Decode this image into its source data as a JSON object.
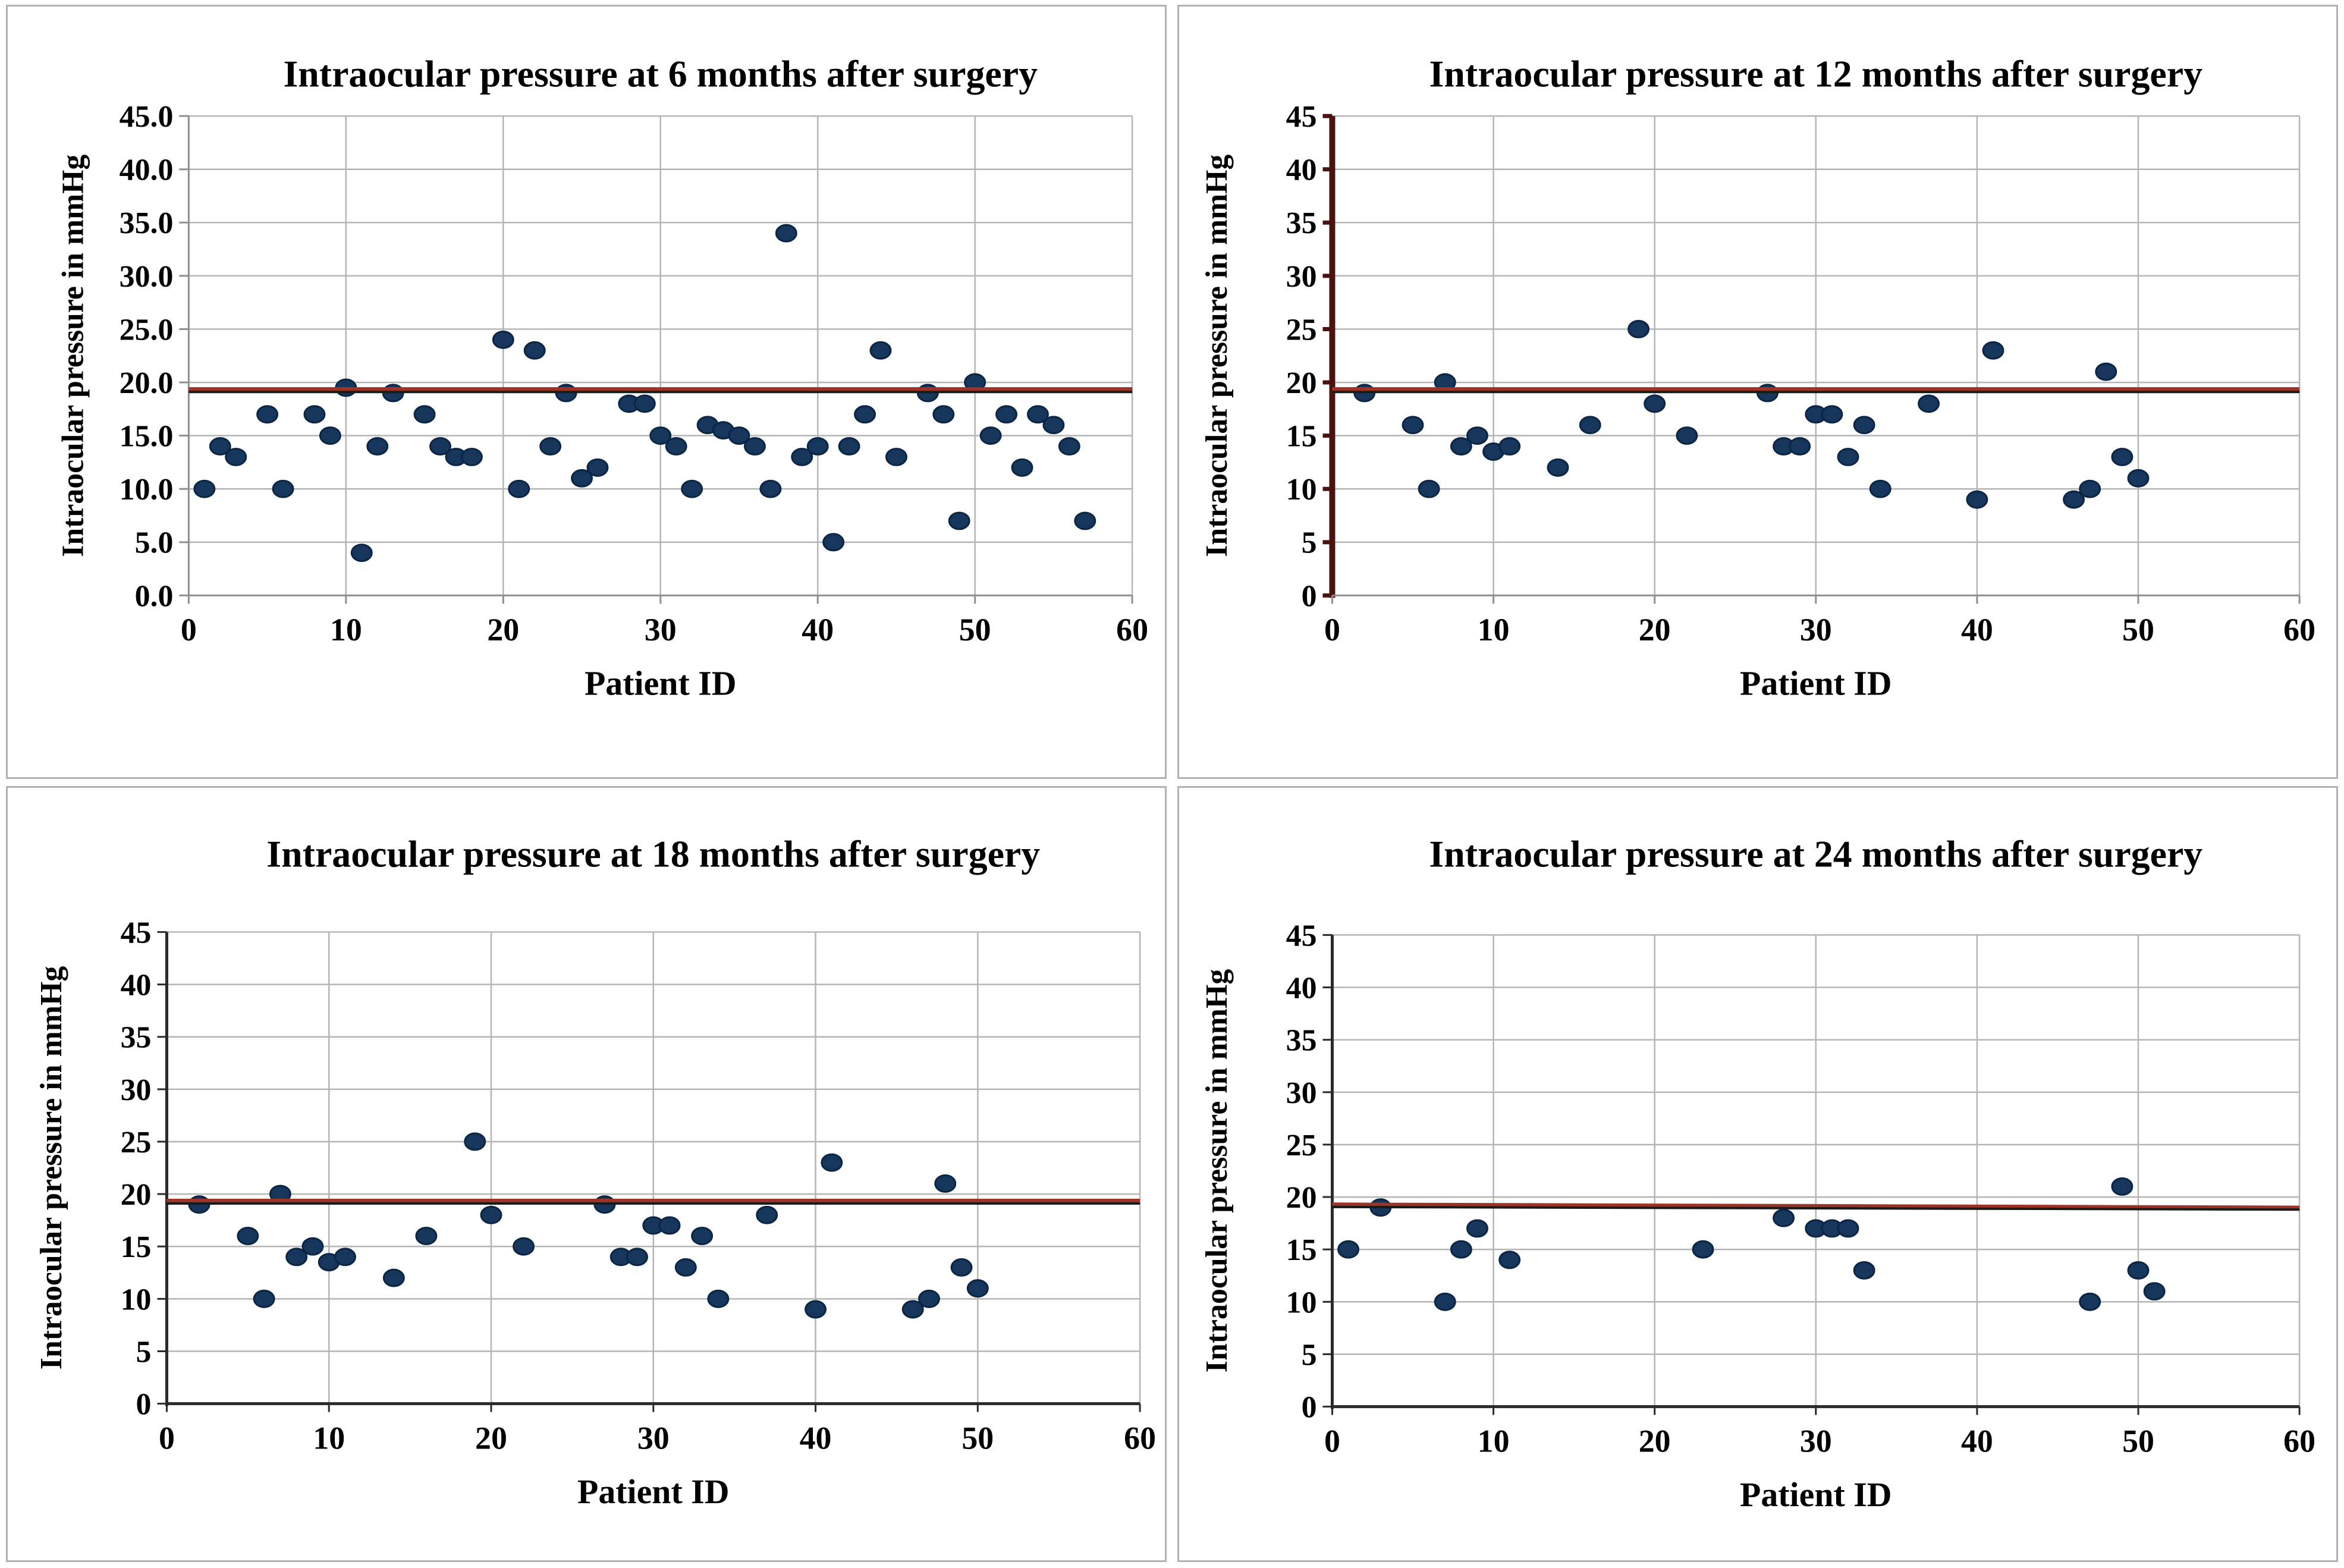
{
  "figure": {
    "description": "Four scatter plots of intraocular pressure per patient at 6, 12, 18 and 24 months after surgery, each with a dark-red/black horizontal reference line near 19 mmHg"
  },
  "colors": {
    "background": "#ffffff",
    "panel_border": "#b2b2b2",
    "grid": "#b5b5b5",
    "dot_fill": "#16365c",
    "dot_stroke": "#0b2544",
    "dark_red": "#9c3327",
    "black": "#1a1a1a",
    "maroon_axis": "#4a130f",
    "gray_axis": "#8f8f8f",
    "dark_axis": "#2a2a2a",
    "text": "#000000"
  },
  "chart_data": [
    {
      "type": "scatter",
      "title": "Intraocular pressure at 6 months after surgery",
      "xlabel": "Patient ID",
      "ylabel": "Intraocular pressure in mmHg",
      "xlim": [
        0,
        60
      ],
      "ylim": [
        0,
        45
      ],
      "xticks": [
        0,
        10,
        20,
        30,
        40,
        50,
        60
      ],
      "xtick_labels": [
        "0",
        "10",
        "20",
        "30",
        "40",
        "50",
        "60"
      ],
      "yticks": [
        0,
        5,
        10,
        15,
        20,
        25,
        30,
        35,
        40,
        45
      ],
      "ytick_labels": [
        "0.0",
        "5.0",
        "10.0",
        "15.0",
        "20.0",
        "25.0",
        "30.0",
        "35.0",
        "40.0",
        "45.0"
      ],
      "grid": true,
      "legend": "none",
      "y_axis_style": "gray",
      "x_axis_style": "gray",
      "reference_lines": [
        {
          "name": "reference-line-red",
          "color": "dark_red",
          "width": 9,
          "y_start": 19.3,
          "y_end": 19.3
        },
        {
          "name": "trend-line-black",
          "color": "black",
          "width": 4,
          "y_start": 19.1,
          "y_end": 19.1
        }
      ],
      "points": [
        [
          1,
          10
        ],
        [
          2,
          14
        ],
        [
          3,
          13
        ],
        [
          5,
          17
        ],
        [
          6,
          10
        ],
        [
          8,
          17
        ],
        [
          9,
          15
        ],
        [
          10,
          19.5
        ],
        [
          11,
          4
        ],
        [
          12,
          14
        ],
        [
          13,
          19
        ],
        [
          15,
          17
        ],
        [
          16,
          14
        ],
        [
          17,
          13
        ],
        [
          18,
          13
        ],
        [
          20,
          24
        ],
        [
          21,
          10
        ],
        [
          22,
          23
        ],
        [
          23,
          14
        ],
        [
          24,
          19
        ],
        [
          25,
          11
        ],
        [
          26,
          12
        ],
        [
          28,
          18
        ],
        [
          29,
          18
        ],
        [
          30,
          15
        ],
        [
          31,
          14
        ],
        [
          32,
          10
        ],
        [
          33,
          16
        ],
        [
          34,
          15.5
        ],
        [
          35,
          15
        ],
        [
          36,
          14
        ],
        [
          37,
          10
        ],
        [
          38,
          34
        ],
        [
          39,
          13
        ],
        [
          40,
          14
        ],
        [
          41,
          5
        ],
        [
          42,
          14
        ],
        [
          43,
          17
        ],
        [
          44,
          23
        ],
        [
          45,
          13
        ],
        [
          47,
          19
        ],
        [
          48,
          17
        ],
        [
          49,
          7
        ],
        [
          50,
          20
        ],
        [
          51,
          15
        ],
        [
          52,
          17
        ],
        [
          53,
          12
        ],
        [
          54,
          17
        ],
        [
          55,
          16
        ],
        [
          56,
          14
        ],
        [
          57,
          7
        ]
      ]
    },
    {
      "type": "scatter",
      "title": "Intraocular pressure at 12 months after surgery",
      "xlabel": "Patient ID",
      "ylabel": "Intraocular pressure in mmHg",
      "xlim": [
        0,
        60
      ],
      "ylim": [
        0,
        45
      ],
      "xticks": [
        0,
        10,
        20,
        30,
        40,
        50,
        60
      ],
      "xtick_labels": [
        "0",
        "10",
        "20",
        "30",
        "40",
        "50",
        "60"
      ],
      "yticks": [
        0,
        5,
        10,
        15,
        20,
        25,
        30,
        35,
        40,
        45
      ],
      "ytick_labels": [
        "0",
        "5",
        "10",
        "15",
        "20",
        "25",
        "30",
        "35",
        "40",
        "45"
      ],
      "grid": true,
      "legend": "none",
      "y_axis_style": "maroon",
      "x_axis_style": "gray",
      "reference_lines": [
        {
          "name": "reference-line-red",
          "color": "dark_red",
          "width": 9,
          "y_start": 19.3,
          "y_end": 19.3
        },
        {
          "name": "trend-line-black",
          "color": "black",
          "width": 4,
          "y_start": 19.1,
          "y_end": 19.1
        }
      ],
      "points": [
        [
          2,
          19
        ],
        [
          5,
          16
        ],
        [
          6,
          10
        ],
        [
          7,
          20
        ],
        [
          8,
          14
        ],
        [
          9,
          15
        ],
        [
          10,
          13.5
        ],
        [
          11,
          14
        ],
        [
          14,
          12
        ],
        [
          16,
          16
        ],
        [
          19,
          25
        ],
        [
          20,
          18
        ],
        [
          22,
          15
        ],
        [
          27,
          19
        ],
        [
          28,
          14
        ],
        [
          29,
          14
        ],
        [
          30,
          17
        ],
        [
          31,
          17
        ],
        [
          32,
          13
        ],
        [
          33,
          16
        ],
        [
          34,
          10
        ],
        [
          37,
          18
        ],
        [
          40,
          9
        ],
        [
          41,
          23
        ],
        [
          46,
          9
        ],
        [
          47,
          10
        ],
        [
          48,
          21
        ],
        [
          49,
          13
        ],
        [
          50,
          11
        ]
      ]
    },
    {
      "type": "scatter",
      "title": "Intraocular pressure at 18 months after surgery",
      "xlabel": "Patient ID",
      "ylabel": "Intraocular pressure in mmHg",
      "xlim": [
        0,
        60
      ],
      "ylim": [
        0,
        45
      ],
      "xticks": [
        0,
        10,
        20,
        30,
        40,
        50,
        60
      ],
      "xtick_labels": [
        "0",
        "10",
        "20",
        "30",
        "40",
        "50",
        "60"
      ],
      "yticks": [
        0,
        5,
        10,
        15,
        20,
        25,
        30,
        35,
        40,
        45
      ],
      "ytick_labels": [
        "0",
        "5",
        "10",
        "15",
        "20",
        "25",
        "30",
        "35",
        "40",
        "45"
      ],
      "grid": true,
      "legend": "none",
      "y_axis_style": "dark",
      "x_axis_style": "dark",
      "reference_lines": [
        {
          "name": "reference-line-red",
          "color": "dark_red",
          "width": 9,
          "y_start": 19.3,
          "y_end": 19.3
        },
        {
          "name": "trend-line-black",
          "color": "black",
          "width": 4,
          "y_start": 19.1,
          "y_end": 19.1
        }
      ],
      "points": [
        [
          2,
          19
        ],
        [
          5,
          16
        ],
        [
          6,
          10
        ],
        [
          7,
          20
        ],
        [
          8,
          14
        ],
        [
          9,
          15
        ],
        [
          10,
          13.5
        ],
        [
          11,
          14
        ],
        [
          14,
          12
        ],
        [
          16,
          16
        ],
        [
          19,
          25
        ],
        [
          20,
          18
        ],
        [
          22,
          15
        ],
        [
          27,
          19
        ],
        [
          28,
          14
        ],
        [
          29,
          14
        ],
        [
          30,
          17
        ],
        [
          31,
          17
        ],
        [
          32,
          13
        ],
        [
          33,
          16
        ],
        [
          34,
          10
        ],
        [
          37,
          18
        ],
        [
          40,
          9
        ],
        [
          41,
          23
        ],
        [
          46,
          9
        ],
        [
          47,
          10
        ],
        [
          48,
          21
        ],
        [
          49,
          13
        ],
        [
          50,
          11
        ]
      ]
    },
    {
      "type": "scatter",
      "title": "Intraocular pressure at 24 months after surgery",
      "xlabel": "Patient ID",
      "ylabel": "Intraocular pressure in mmHg",
      "xlim": [
        0,
        60
      ],
      "ylim": [
        0,
        45
      ],
      "xticks": [
        0,
        10,
        20,
        30,
        40,
        50,
        60
      ],
      "xtick_labels": [
        "0",
        "10",
        "20",
        "30",
        "40",
        "50",
        "60"
      ],
      "yticks": [
        0,
        5,
        10,
        15,
        20,
        25,
        30,
        35,
        40,
        45
      ],
      "ytick_labels": [
        "0",
        "5",
        "10",
        "15",
        "20",
        "25",
        "30",
        "35",
        "40",
        "45"
      ],
      "grid": true,
      "legend": "none",
      "y_axis_style": "dark",
      "x_axis_style": "dark",
      "reference_lines": [
        {
          "name": "reference-line-red",
          "color": "dark_red",
          "width": 8,
          "y_start": 19.25,
          "y_end": 18.95
        },
        {
          "name": "trend-line-black",
          "color": "black",
          "width": 4,
          "y_start": 19.05,
          "y_end": 18.8
        }
      ],
      "points": [
        [
          1,
          15
        ],
        [
          3,
          19
        ],
        [
          7,
          10
        ],
        [
          8,
          15
        ],
        [
          9,
          17
        ],
        [
          11,
          14
        ],
        [
          23,
          15
        ],
        [
          28,
          18
        ],
        [
          30,
          17
        ],
        [
          31,
          17
        ],
        [
          32,
          17
        ],
        [
          33,
          13
        ],
        [
          47,
          10
        ],
        [
          49,
          21
        ],
        [
          50,
          13
        ],
        [
          51,
          11
        ]
      ]
    }
  ]
}
